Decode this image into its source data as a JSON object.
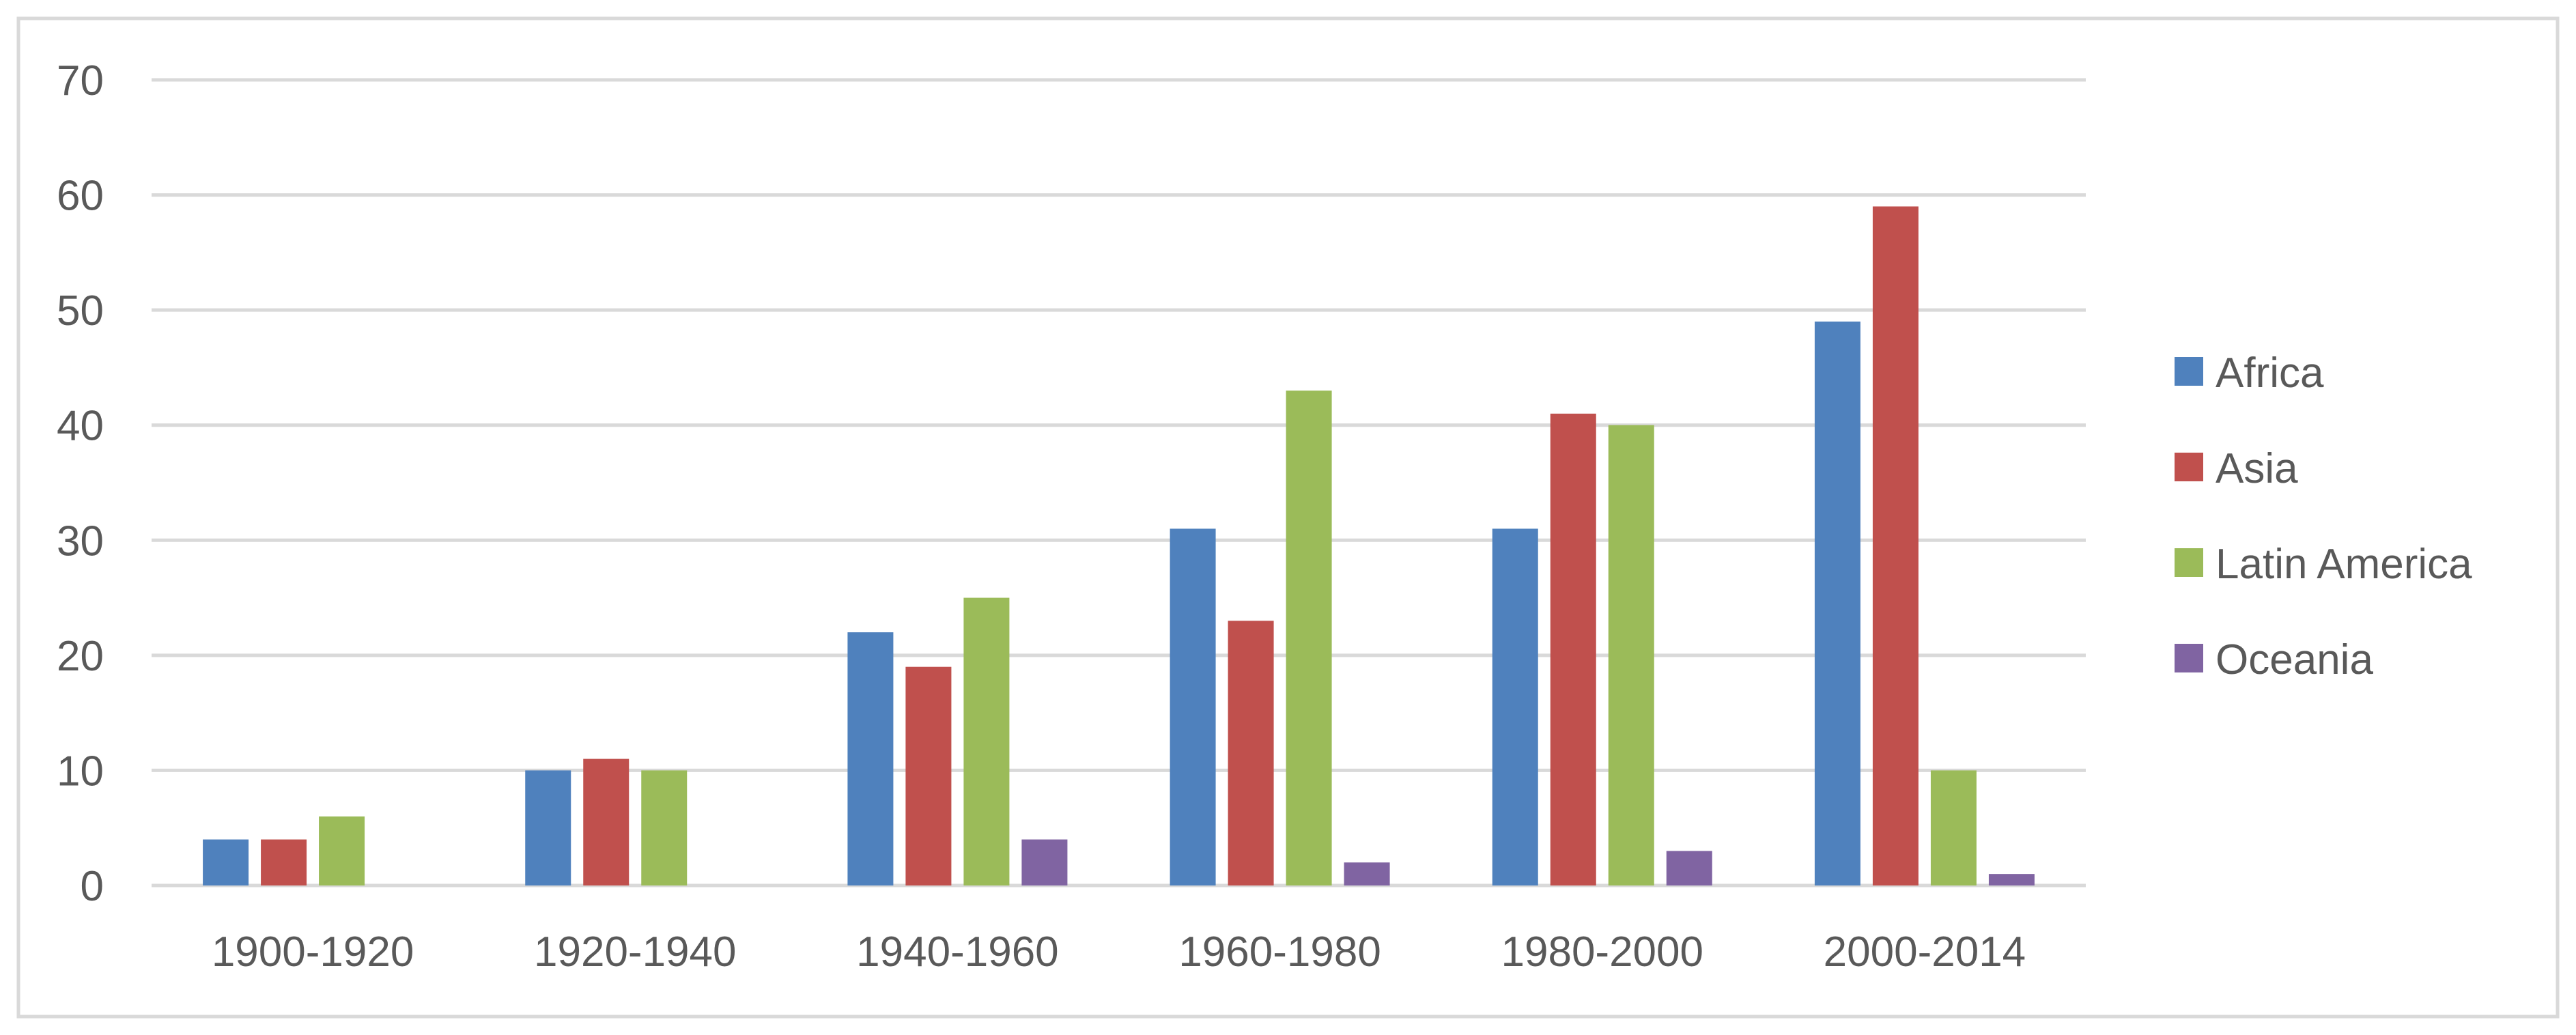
{
  "chart_data": {
    "type": "bar",
    "title": "",
    "xlabel": "",
    "ylabel": "",
    "ylim": [
      0,
      70
    ],
    "yticks": [
      0,
      10,
      20,
      30,
      40,
      50,
      60,
      70
    ],
    "grid": true,
    "legend_position": "right",
    "categories": [
      "1900-1920",
      "1920-1940",
      "1940-1960",
      "1960-1980",
      "1980-2000",
      "2000-2014"
    ],
    "series": [
      {
        "name": "Africa",
        "color": "#4F81BD",
        "values": [
          4,
          10,
          22,
          31,
          31,
          49
        ]
      },
      {
        "name": "Asia",
        "color": "#C0504D",
        "values": [
          4,
          11,
          19,
          23,
          41,
          59
        ]
      },
      {
        "name": "Latin America",
        "color": "#9BBB59",
        "values": [
          6,
          10,
          25,
          43,
          40,
          10
        ]
      },
      {
        "name": "Oceania",
        "color": "#8064A2",
        "values": [
          0,
          0,
          4,
          2,
          3,
          1
        ]
      }
    ]
  }
}
